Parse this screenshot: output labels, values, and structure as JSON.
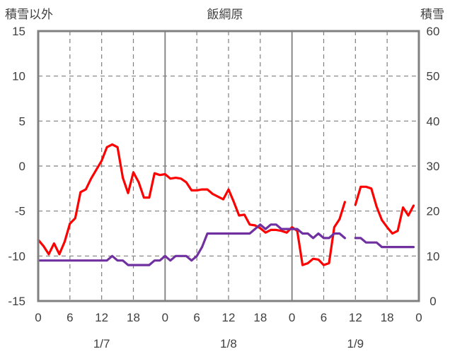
{
  "chart_data": {
    "type": "line",
    "title": "飯綱原",
    "ylabel_left": "積雪以外",
    "ylabel_right": "積雪",
    "ylim_left": [
      -15,
      15
    ],
    "ylim_right": [
      0,
      60
    ],
    "yticks_left": [
      15,
      10,
      5,
      0,
      -5,
      -10,
      -15
    ],
    "yticks_right": [
      60,
      50,
      40,
      30,
      20,
      10,
      0
    ],
    "xlim": [
      0,
      72
    ],
    "xticks": [
      {
        "x": 0,
        "label": "0"
      },
      {
        "x": 6,
        "label": "6"
      },
      {
        "x": 12,
        "label": "12"
      },
      {
        "x": 18,
        "label": "18"
      },
      {
        "x": 24,
        "label": "0"
      },
      {
        "x": 30,
        "label": "6"
      },
      {
        "x": 36,
        "label": "12"
      },
      {
        "x": 42,
        "label": "18"
      },
      {
        "x": 48,
        "label": "0"
      },
      {
        "x": 54,
        "label": "6"
      },
      {
        "x": 60,
        "label": "12"
      },
      {
        "x": 66,
        "label": "18"
      },
      {
        "x": 72,
        "label": "0"
      }
    ],
    "date_labels": [
      {
        "x": 12,
        "label": "1/7"
      },
      {
        "x": 36,
        "label": "1/8"
      },
      {
        "x": 60,
        "label": "1/9"
      }
    ],
    "series": [
      {
        "axis": "left",
        "color": "#ff0000",
        "points": [
          [
            0,
            -8.2
          ],
          [
            1,
            -8.9
          ],
          [
            2,
            -9.8
          ],
          [
            3,
            -8.6
          ],
          [
            4,
            -9.8
          ],
          [
            5,
            -8.4
          ],
          [
            6,
            -6.4
          ],
          [
            7,
            -5.8
          ],
          [
            8,
            -2.9
          ],
          [
            9,
            -2.6
          ],
          [
            10,
            -1.4
          ],
          [
            11,
            -0.4
          ],
          [
            12,
            0.6
          ],
          [
            13,
            2.1
          ],
          [
            14,
            2.4
          ],
          [
            15,
            2.1
          ],
          [
            16,
            -1.3
          ],
          [
            17,
            -3.0
          ],
          [
            18,
            -0.7
          ],
          [
            19,
            -1.8
          ],
          [
            20,
            -3.5
          ],
          [
            21,
            -3.5
          ],
          [
            22,
            -0.8
          ],
          [
            23,
            -1.0
          ],
          [
            24,
            -0.9
          ],
          [
            25,
            -1.4
          ],
          [
            26,
            -1.3
          ],
          [
            27,
            -1.4
          ],
          [
            28,
            -1.8
          ],
          [
            29,
            -2.7
          ],
          [
            30,
            -2.7
          ],
          [
            31,
            -2.6
          ],
          [
            32,
            -2.6
          ],
          [
            33,
            -3.1
          ],
          [
            34,
            -3.4
          ],
          [
            35,
            -3.7
          ],
          [
            36,
            -2.6
          ],
          [
            37,
            -4.0
          ],
          [
            38,
            -5.5
          ],
          [
            39,
            -5.4
          ],
          [
            40,
            -6.5
          ],
          [
            41,
            -6.6
          ],
          [
            42,
            -6.9
          ],
          [
            43,
            -7.4
          ],
          [
            44,
            -7.1
          ],
          [
            45,
            -7.1
          ],
          [
            46,
            -7.2
          ],
          [
            47,
            -7.4
          ],
          [
            48,
            -6.8
          ],
          [
            49,
            -7.2
          ],
          [
            50,
            -11.0
          ],
          [
            51,
            -10.8
          ],
          [
            52,
            -10.3
          ],
          [
            53,
            -10.4
          ],
          [
            54,
            -11.0
          ],
          [
            55,
            -10.8
          ],
          [
            56,
            -6.8
          ],
          [
            57,
            -5.9
          ],
          [
            58,
            -4.0
          ],
          null,
          [
            60,
            -4.3
          ],
          [
            61,
            -2.3
          ],
          [
            62,
            -2.3
          ],
          [
            63,
            -2.5
          ],
          [
            64,
            -4.5
          ],
          [
            65,
            -6.0
          ],
          [
            66,
            -6.8
          ],
          [
            67,
            -7.5
          ],
          [
            68,
            -7.2
          ],
          [
            69,
            -4.6
          ],
          [
            70,
            -5.5
          ],
          [
            71,
            -4.4
          ]
        ]
      },
      {
        "axis": "left",
        "color": "#7030a0",
        "points": [
          [
            0,
            -10.5
          ],
          [
            1,
            -10.5
          ],
          [
            2,
            -10.5
          ],
          [
            3,
            -10.5
          ],
          [
            4,
            -10.5
          ],
          [
            5,
            -10.5
          ],
          [
            6,
            -10.5
          ],
          [
            7,
            -10.5
          ],
          [
            8,
            -10.5
          ],
          [
            9,
            -10.5
          ],
          [
            10,
            -10.5
          ],
          [
            11,
            -10.5
          ],
          [
            12,
            -10.5
          ],
          [
            13,
            -10.5
          ],
          [
            14,
            -10.0
          ],
          [
            15,
            -10.5
          ],
          [
            16,
            -10.5
          ],
          [
            17,
            -11.0
          ],
          [
            18,
            -11.0
          ],
          [
            19,
            -11.0
          ],
          [
            20,
            -11.0
          ],
          [
            21,
            -11.0
          ],
          [
            22,
            -10.5
          ],
          [
            23,
            -10.5
          ],
          [
            24,
            -10.0
          ],
          [
            25,
            -10.5
          ],
          [
            26,
            -10.0
          ],
          [
            27,
            -10.0
          ],
          [
            28,
            -10.0
          ],
          [
            29,
            -10.5
          ],
          [
            30,
            -10.0
          ],
          [
            31,
            -9.0
          ],
          [
            32,
            -7.5
          ],
          [
            33,
            -7.5
          ],
          [
            34,
            -7.5
          ],
          [
            35,
            -7.5
          ],
          [
            36,
            -7.5
          ],
          [
            37,
            -7.5
          ],
          [
            38,
            -7.5
          ],
          [
            39,
            -7.5
          ],
          [
            40,
            -7.5
          ],
          [
            41,
            -7.0
          ],
          [
            42,
            -6.5
          ],
          [
            43,
            -7.0
          ],
          [
            44,
            -6.5
          ],
          [
            45,
            -6.5
          ],
          [
            46,
            -7.0
          ],
          [
            47,
            -7.0
          ],
          [
            48,
            -7.0
          ],
          [
            49,
            -7.0
          ],
          [
            50,
            -7.5
          ],
          [
            51,
            -7.5
          ],
          [
            52,
            -8.0
          ],
          [
            53,
            -7.5
          ],
          [
            54,
            -8.0
          ],
          [
            55,
            -8.0
          ],
          [
            56,
            -7.5
          ],
          [
            57,
            -7.5
          ],
          [
            58,
            -8.0
          ],
          null,
          [
            60,
            -8.0
          ],
          [
            61,
            -8.0
          ],
          [
            62,
            -8.5
          ],
          [
            63,
            -8.5
          ],
          [
            64,
            -8.5
          ],
          [
            65,
            -9.0
          ],
          [
            66,
            -9.0
          ],
          [
            67,
            -9.0
          ],
          [
            68,
            -9.0
          ],
          [
            69,
            -9.0
          ],
          [
            70,
            -9.0
          ],
          [
            71,
            -9.0
          ]
        ]
      }
    ],
    "grid": true
  }
}
